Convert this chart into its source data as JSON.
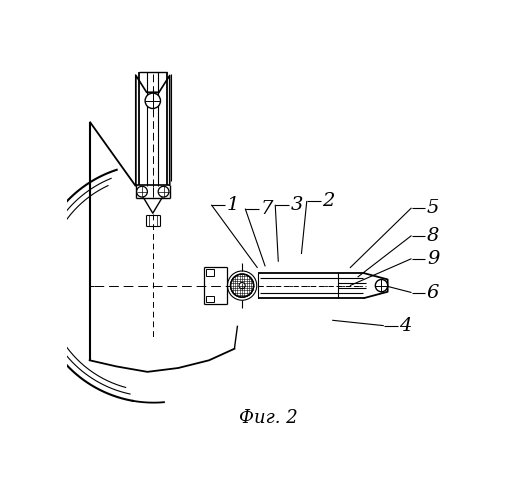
{
  "title": "Фиг. 2",
  "bg_color": "#ffffff",
  "line_color": "#000000",
  "figsize": [
    5.22,
    5.0
  ],
  "dpi": 100,
  "leaders": [
    [
      "1",
      208,
      188,
      248,
      270
    ],
    [
      "7",
      252,
      193,
      258,
      268
    ],
    [
      "3",
      291,
      188,
      275,
      262
    ],
    [
      "2",
      332,
      183,
      305,
      252
    ],
    [
      "5",
      468,
      192,
      368,
      270
    ],
    [
      "8",
      468,
      228,
      378,
      282
    ],
    [
      "9",
      468,
      258,
      368,
      293
    ],
    [
      "6",
      468,
      302,
      413,
      293
    ],
    [
      "4",
      432,
      345,
      345,
      338
    ]
  ]
}
